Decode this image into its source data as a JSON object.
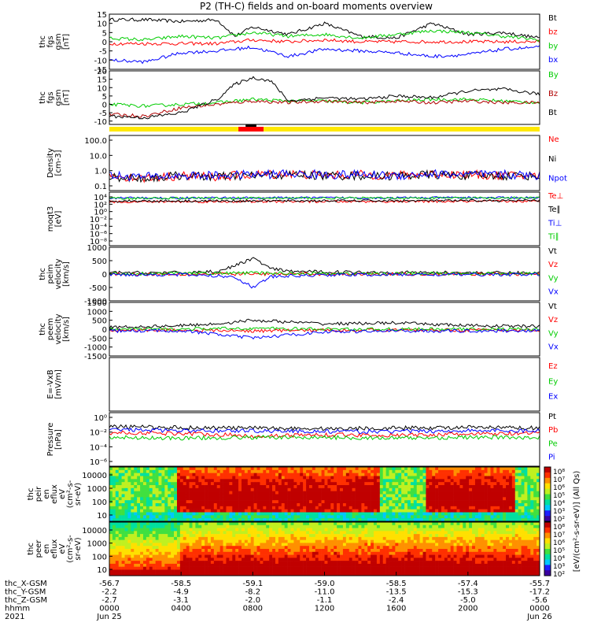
{
  "title": "P2 (TH-C) fields and on-board moments overview",
  "chart_data": [
    {
      "type": "line",
      "ylabel": [
        "thc",
        "fgs",
        "gsm",
        "[nT]"
      ],
      "yticks": [
        15,
        10,
        5,
        0,
        -5,
        -10,
        -15
      ],
      "ylim": [
        -15,
        15
      ],
      "series": [
        {
          "name": "Bt",
          "color": "#000000",
          "x": [
            0,
            2,
            4,
            6,
            7,
            8,
            10,
            12,
            14,
            16,
            18,
            20,
            22,
            24
          ],
          "values": [
            12,
            12,
            11,
            12,
            3,
            8,
            4,
            10,
            3,
            2,
            10,
            4,
            5,
            2
          ]
        },
        {
          "name": "bz",
          "color": "#ff0000",
          "x": [
            0,
            2,
            4,
            6,
            8,
            10,
            12,
            14,
            16,
            18,
            20,
            22,
            24
          ],
          "values": [
            -1,
            -1,
            -1,
            -1,
            1,
            0,
            1,
            0,
            0,
            0,
            0,
            0,
            0
          ]
        },
        {
          "name": "by",
          "color": "#00cc00",
          "x": [
            0,
            2,
            4,
            6,
            8,
            10,
            12,
            14,
            16,
            18,
            20,
            22,
            24
          ],
          "values": [
            2,
            1,
            3,
            2,
            5,
            3,
            4,
            2,
            4,
            6,
            5,
            3,
            1
          ]
        },
        {
          "name": "bx",
          "color": "#0000ff",
          "x": [
            0,
            2,
            4,
            6,
            8,
            10,
            12,
            14,
            16,
            18,
            20,
            22,
            24
          ],
          "values": [
            -10,
            -11,
            -6,
            -5,
            -3,
            -8,
            -4,
            -5,
            -6,
            -8,
            -7,
            -4,
            -3
          ]
        }
      ]
    },
    {
      "type": "line",
      "ylabel": [
        "thc",
        "fgs",
        "gsm",
        "[nT]"
      ],
      "yticks": [
        20,
        15,
        10,
        5,
        0,
        -5,
        -10
      ],
      "ylim": [
        -12,
        20
      ],
      "series": [
        {
          "name": "By",
          "color": "#00cc00",
          "x": [
            0,
            2,
            4,
            6,
            8,
            10,
            12,
            14,
            16,
            18,
            20,
            22,
            24
          ],
          "values": [
            0,
            -1,
            0,
            1,
            3,
            2,
            2,
            1,
            2,
            3,
            3,
            2,
            1
          ]
        },
        {
          "name": "Bz",
          "color": "#b00000",
          "x": [
            0,
            2,
            4,
            6,
            8,
            10,
            12,
            14,
            16,
            18,
            20,
            22,
            24
          ],
          "values": [
            -6,
            -7,
            -2,
            0,
            2,
            1,
            2,
            1,
            2,
            1,
            2,
            1,
            1
          ]
        },
        {
          "name": "Bt",
          "color": "#000000",
          "x": [
            0,
            2,
            4,
            6,
            7,
            8,
            9,
            10,
            12,
            14,
            16,
            18,
            20,
            22,
            24
          ],
          "values": [
            -7,
            -8,
            -5,
            3,
            12,
            16,
            14,
            2,
            4,
            3,
            5,
            4,
            8,
            9,
            6
          ]
        }
      ]
    },
    {
      "type": "line",
      "ylabel": [
        "Density",
        "[cm-3]"
      ],
      "yticks": [
        "100.0",
        "10.0",
        "1.0",
        "0.1"
      ],
      "scale": "log",
      "ylim": [
        0.03,
        150
      ],
      "series": [
        {
          "name": "Ne",
          "color": "#ff0000",
          "x": [
            0,
            2,
            4,
            6,
            8,
            10,
            12,
            14,
            16,
            18,
            20,
            22,
            24
          ],
          "values": [
            0.3,
            0.2,
            0.3,
            0.25,
            0.35,
            0.4,
            0.3,
            0.35,
            0.3,
            0.4,
            0.35,
            0.3,
            0.3
          ]
        },
        {
          "name": "Ni",
          "color": "#000000",
          "x": [
            0,
            2,
            4,
            6,
            8,
            10,
            12,
            14,
            16,
            18,
            20,
            22,
            24
          ],
          "values": [
            0.25,
            0.2,
            0.3,
            0.25,
            0.3,
            0.35,
            0.3,
            0.3,
            0.3,
            0.35,
            0.3,
            0.3,
            0.3
          ]
        },
        {
          "name": "Npot",
          "color": "#0000ff",
          "x": [
            0,
            2,
            4,
            6,
            8,
            10,
            12,
            14,
            16,
            18,
            20,
            22,
            24
          ],
          "values": [
            0.3,
            0.25,
            0.3,
            0.3,
            0.35,
            0.4,
            0.35,
            0.35,
            0.3,
            0.4,
            0.35,
            0.35,
            0.3
          ]
        }
      ]
    },
    {
      "type": "line",
      "ylabel": [
        "moqt3",
        "[eV]"
      ],
      "yticks": [
        "10⁴",
        "10²",
        "10⁰",
        "10⁻²",
        "10⁻⁴",
        "10⁻⁶",
        "10⁻⁸"
      ],
      "scale": "log",
      "ylim": [
        1e-09,
        100000.0
      ],
      "series": [
        {
          "name": "Te⊥",
          "color": "#ff0000",
          "x": [
            0,
            24
          ],
          "values": [
            300,
            400
          ]
        },
        {
          "name": "Te∥",
          "color": "#000000",
          "x": [
            0,
            24
          ],
          "values": [
            500,
            600
          ]
        },
        {
          "name": "Ti⊥",
          "color": "#0000ff",
          "x": [
            0,
            24
          ],
          "values": [
            3000,
            3500
          ]
        },
        {
          "name": "Ti∥",
          "color": "#00cc00",
          "x": [
            0,
            24
          ],
          "values": [
            2500,
            3000
          ]
        }
      ]
    },
    {
      "type": "line",
      "ylabel": [
        "thc",
        "peim",
        "velocity",
        "[km/s]"
      ],
      "yticks": [
        1000,
        500,
        0,
        -500,
        -1000
      ],
      "ylim": [
        -1000,
        1000
      ],
      "series": [
        {
          "name": "Vt",
          "color": "#000000",
          "x": [
            0,
            4,
            6,
            7,
            8,
            9,
            10,
            12,
            16,
            20,
            24
          ],
          "values": [
            50,
            50,
            100,
            300,
            600,
            200,
            100,
            80,
            60,
            50,
            40
          ]
        },
        {
          "name": "Vz",
          "color": "#ff0000",
          "x": [
            0,
            4,
            8,
            12,
            16,
            20,
            24
          ],
          "values": [
            0,
            0,
            0,
            0,
            0,
            0,
            0
          ]
        },
        {
          "name": "Vy",
          "color": "#00cc00",
          "x": [
            0,
            4,
            8,
            12,
            16,
            20,
            24
          ],
          "values": [
            10,
            20,
            40,
            20,
            10,
            20,
            10
          ]
        },
        {
          "name": "Vx",
          "color": "#0000ff",
          "x": [
            0,
            4,
            7,
            8,
            9,
            12,
            16,
            20,
            24
          ],
          "values": [
            -20,
            -20,
            -100,
            -500,
            -100,
            -30,
            -20,
            -20,
            -20
          ]
        }
      ]
    },
    {
      "type": "line",
      "ylabel": [
        "thc",
        "peem",
        "velocity",
        "[km/s]"
      ],
      "yticks": [
        1500,
        1000,
        500,
        0,
        -500,
        -1000,
        -1500
      ],
      "ylim": [
        -1500,
        1500
      ],
      "series": [
        {
          "name": "Vt",
          "color": "#000000",
          "x": [
            0,
            4,
            6,
            8,
            10,
            12,
            16,
            20,
            24
          ],
          "values": [
            100,
            200,
            300,
            500,
            400,
            300,
            350,
            200,
            150
          ]
        },
        {
          "name": "Vz",
          "color": "#ff0000",
          "x": [
            0,
            4,
            8,
            12,
            16,
            20,
            24
          ],
          "values": [
            -50,
            -50,
            -100,
            -50,
            -50,
            -50,
            -50
          ]
        },
        {
          "name": "Vy",
          "color": "#00cc00",
          "x": [
            0,
            4,
            8,
            12,
            16,
            20,
            24
          ],
          "values": [
            0,
            0,
            50,
            0,
            0,
            0,
            0
          ]
        },
        {
          "name": "Vx",
          "color": "#0000ff",
          "x": [
            0,
            4,
            8,
            12,
            16,
            20,
            24
          ],
          "values": [
            -100,
            -80,
            -500,
            -150,
            -100,
            -100,
            -80
          ]
        }
      ]
    },
    {
      "type": "line",
      "ylabel": [
        "E=-VxB",
        "[mV/m]"
      ],
      "yticks": [],
      "series": [
        {
          "name": "Ez",
          "color": "#ff0000",
          "x": [],
          "values": []
        },
        {
          "name": "Ey",
          "color": "#00cc00",
          "x": [],
          "values": []
        },
        {
          "name": "Ex",
          "color": "#0000ff",
          "x": [],
          "values": []
        }
      ]
    },
    {
      "type": "line",
      "ylabel": [
        "Pressure",
        "[nPa]"
      ],
      "yticks": [
        "10⁰",
        "10⁻²",
        "10⁻⁴",
        "10⁻⁶"
      ],
      "scale": "log",
      "ylim": [
        1e-07,
        10
      ],
      "series": [
        {
          "name": "Pt",
          "color": "#000000",
          "x": [
            0,
            4,
            8,
            12,
            16,
            20,
            24
          ],
          "values": [
            0.08,
            0.06,
            0.05,
            0.04,
            0.05,
            0.06,
            0.05
          ]
        },
        {
          "name": "Pb",
          "color": "#ff0000",
          "x": [
            0,
            4,
            8,
            12,
            16,
            20,
            24
          ],
          "values": [
            0.01,
            0.008,
            0.003,
            0.005,
            0.004,
            0.006,
            0.008
          ]
        },
        {
          "name": "Pe",
          "color": "#00cc00",
          "x": [
            0,
            4,
            8,
            12,
            16,
            20,
            24
          ],
          "values": [
            0.002,
            0.0015,
            0.002,
            0.002,
            0.0015,
            0.002,
            0.002
          ]
        },
        {
          "name": "Pi",
          "color": "#0000ff",
          "x": [
            0,
            4,
            8,
            12,
            16,
            20,
            24
          ],
          "values": [
            0.03,
            0.02,
            0.02,
            0.015,
            0.015,
            0.02,
            0.02
          ]
        }
      ]
    },
    {
      "type": "heatmap",
      "ylabel": [
        "thc",
        "peir",
        "en",
        "eflux",
        "eV",
        "(cm²-s-",
        "sr-eV)"
      ],
      "yticks": [
        10000,
        1000,
        100,
        10
      ]
    },
    {
      "type": "heatmap",
      "ylabel": [
        "thc",
        "peer",
        "en",
        "eflux",
        "eV",
        "(cm²-s-",
        "sr-eV)"
      ],
      "yticks": [
        10000,
        1000,
        100,
        10
      ]
    }
  ],
  "colorbar": {
    "ticks": [
      "10⁸",
      "10⁷",
      "10⁶",
      "10⁵",
      "10⁴",
      "10³",
      "10²",
      "10⁸",
      "10⁷",
      "10⁶",
      "10⁵",
      "10⁴",
      "10³",
      "10²"
    ],
    "label": "[eV/(cm²-s-sr-eV)] (All Qs)"
  },
  "xaxis": {
    "row_labels": [
      "thc_X-GSM",
      "thc_Y-GSM",
      "thc_Z-GSM",
      "hhmm",
      "2021"
    ],
    "columns": [
      [
        "-56.7",
        "-2.2",
        "-2.7",
        "0000",
        "Jun 25"
      ],
      [
        "-58.5",
        "-4.9",
        "-3.1",
        "0400",
        ""
      ],
      [
        "-59.1",
        "-8.2",
        "-2.0",
        "0800",
        ""
      ],
      [
        "-59.0",
        "-11.0",
        "-1.1",
        "1200",
        ""
      ],
      [
        "-58.5",
        "-13.5",
        "-2.4",
        "1600",
        ""
      ],
      [
        "-57.4",
        "-15.3",
        "-5.0",
        "2000",
        ""
      ],
      [
        "-55.7",
        "-17.2",
        "-5.6",
        "0000",
        "Jun 26"
      ]
    ]
  }
}
